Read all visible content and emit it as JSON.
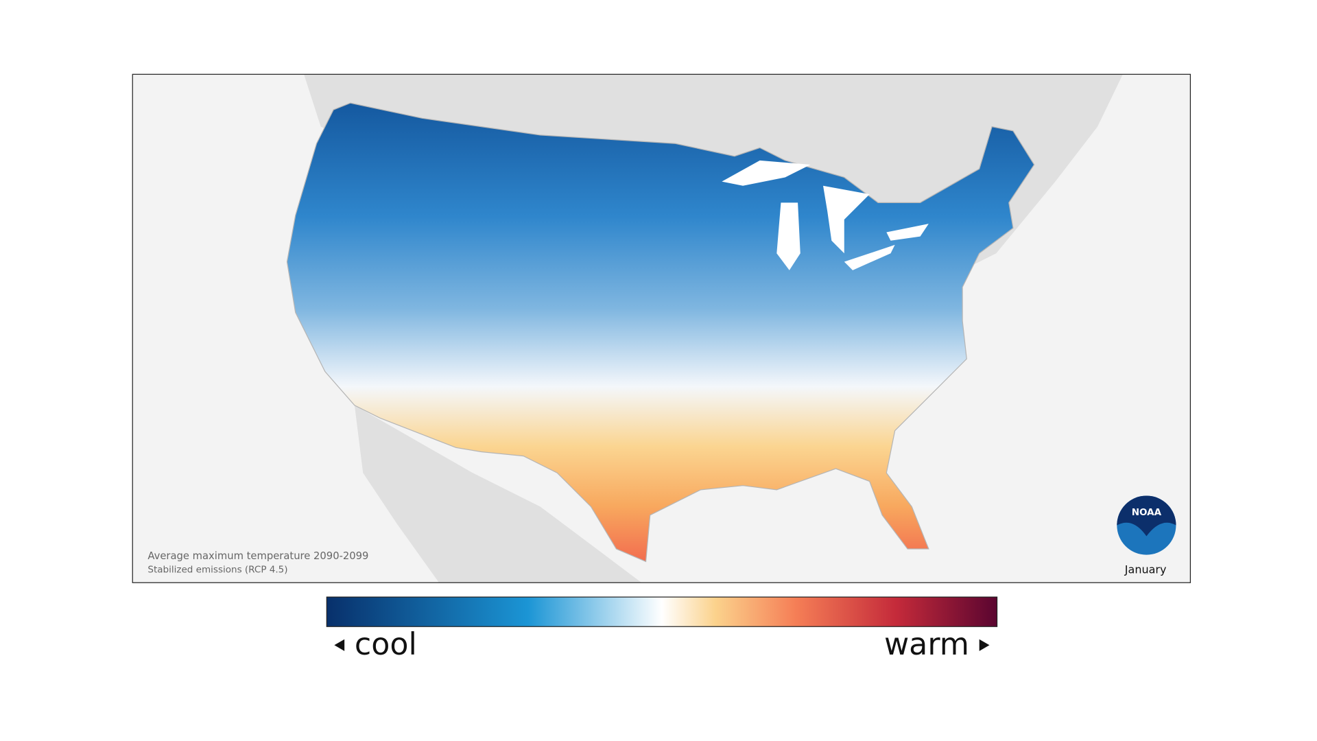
{
  "map": {
    "caption": "Average maximum temperature 2090-2099",
    "subcaption": "Stabilized emissions (RCP 4.5)",
    "month": "January",
    "logo_text": "NOAA"
  },
  "legend": {
    "low_label": "cool",
    "high_label": "warm"
  }
}
